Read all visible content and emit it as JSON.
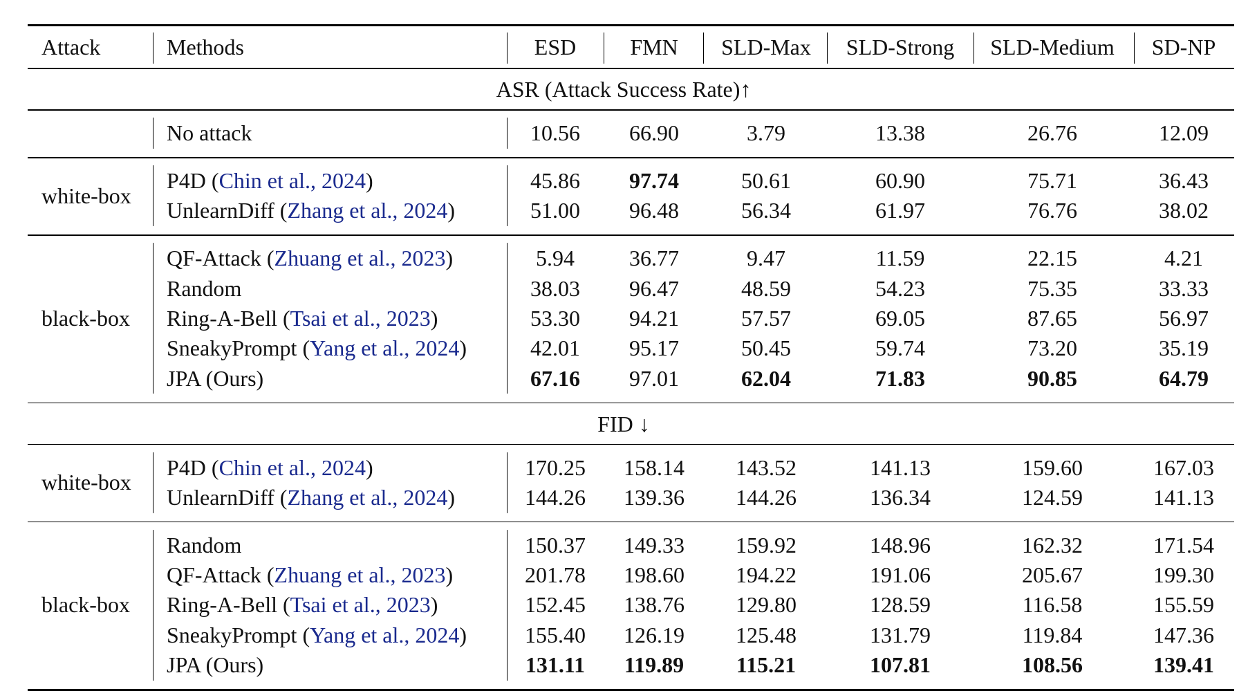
{
  "header": {
    "attack": "Attack",
    "methods": "Methods",
    "columns": [
      "ESD",
      "FMN",
      "SLD-Max",
      "SLD-Strong",
      "SLD-Medium",
      "SD-NP"
    ]
  },
  "sections": [
    {
      "title": "ASR (Attack Success Rate)↑",
      "groups": [
        {
          "attack": "",
          "rows": [
            {
              "method": "No attack",
              "cite": "",
              "values": [
                "10.56",
                "66.90",
                "3.79",
                "13.38",
                "26.76",
                "12.09"
              ],
              "bold": []
            }
          ]
        },
        {
          "attack": "white-box",
          "rows": [
            {
              "method": "P4D (",
              "cite": "Chin et al., 2024",
              "close": ")",
              "values": [
                "45.86",
                "97.74",
                "50.61",
                "60.90",
                "75.71",
                "36.43"
              ],
              "bold": [
                1
              ]
            },
            {
              "method": "UnlearnDiff (",
              "cite": "Zhang et al., 2024",
              "close": ")",
              "values": [
                "51.00",
                "96.48",
                "56.34",
                "61.97",
                "76.76",
                "38.02"
              ],
              "bold": []
            }
          ]
        },
        {
          "attack": "black-box",
          "rows": [
            {
              "method": "QF-Attack (",
              "cite": "Zhuang et al., 2023",
              "close": ")",
              "values": [
                "5.94",
                "36.77",
                "9.47",
                "11.59",
                "22.15",
                "4.21"
              ],
              "bold": []
            },
            {
              "method": "Random",
              "cite": "",
              "values": [
                "38.03",
                "96.47",
                "48.59",
                "54.23",
                "75.35",
                "33.33"
              ],
              "bold": []
            },
            {
              "method": "Ring-A-Bell (",
              "cite": "Tsai et al., 2023",
              "close": ")",
              "values": [
                "53.30",
                "94.21",
                "57.57",
                "69.05",
                "87.65",
                "56.97"
              ],
              "bold": []
            },
            {
              "method": "SneakyPrompt (",
              "cite": "Yang et al., 2024",
              "close": ")",
              "values": [
                "42.01",
                "95.17",
                "50.45",
                "59.74",
                "73.20",
                "35.19"
              ],
              "bold": []
            },
            {
              "method": "JPA (Ours)",
              "cite": "",
              "values": [
                "67.16",
                "97.01",
                "62.04",
                "71.83",
                "90.85",
                "64.79"
              ],
              "bold": [
                0,
                2,
                3,
                4,
                5
              ]
            }
          ]
        }
      ]
    },
    {
      "title": "FID ↓",
      "groups": [
        {
          "attack": "white-box",
          "rows": [
            {
              "method": "P4D (",
              "cite": "Chin et al., 2024",
              "close": ")",
              "values": [
                "170.25",
                "158.14",
                "143.52",
                "141.13",
                "159.60",
                "167.03"
              ],
              "bold": []
            },
            {
              "method": "UnlearnDiff (",
              "cite": "Zhang et al., 2024",
              "close": ")",
              "values": [
                "144.26",
                "139.36",
                "144.26",
                "136.34",
                "124.59",
                "141.13"
              ],
              "bold": []
            }
          ]
        },
        {
          "attack": "black-box",
          "rows": [
            {
              "method": "Random",
              "cite": "",
              "values": [
                "150.37",
                "149.33",
                "159.92",
                "148.96",
                "162.32",
                "171.54"
              ],
              "bold": []
            },
            {
              "method": "QF-Attack (",
              "cite": "Zhuang et al., 2023",
              "close": ")",
              "values": [
                "201.78",
                "198.60",
                "194.22",
                "191.06",
                "205.67",
                "199.30"
              ],
              "bold": []
            },
            {
              "method": "Ring-A-Bell (",
              "cite": "Tsai et al., 2023",
              "close": ")",
              "values": [
                "152.45",
                "138.76",
                "129.80",
                "128.59",
                "116.58",
                "155.59"
              ],
              "bold": []
            },
            {
              "method": "SneakyPrompt (",
              "cite": "Yang et al., 2024",
              "close": ")",
              "values": [
                "155.40",
                "126.19",
                "125.48",
                "131.79",
                "119.84",
                "147.36"
              ],
              "bold": []
            },
            {
              "method": "JPA (Ours)",
              "cite": "",
              "values": [
                "131.11",
                "119.89",
                "115.21",
                "107.81",
                "108.56",
                "139.41"
              ],
              "bold": [
                0,
                1,
                2,
                3,
                4,
                5
              ]
            }
          ]
        }
      ]
    }
  ]
}
